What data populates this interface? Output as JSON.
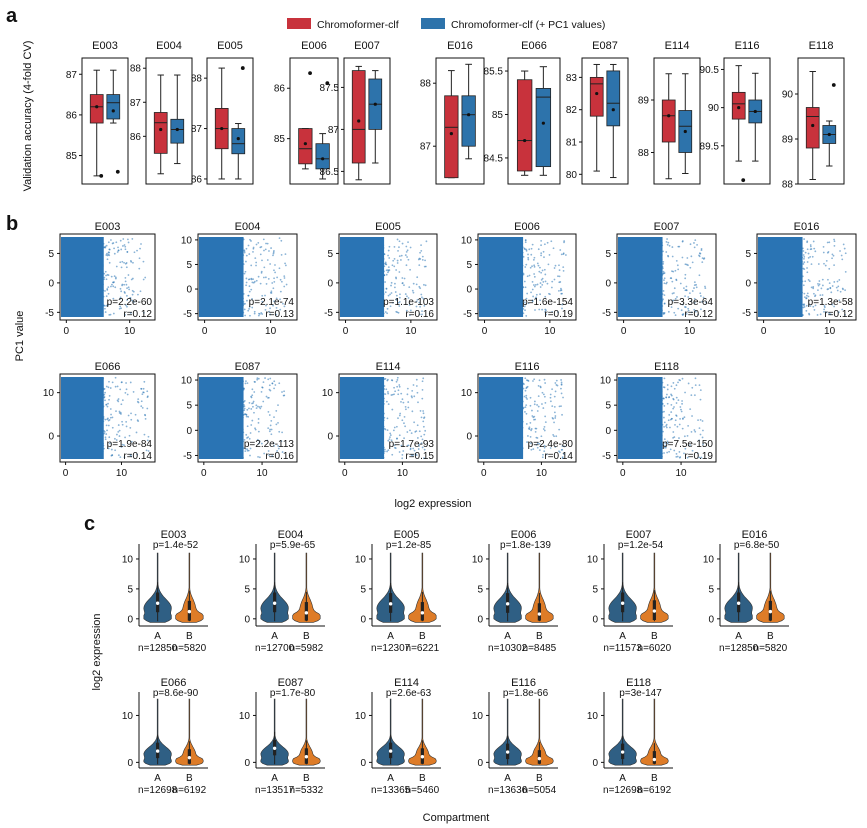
{
  "panels": {
    "a": "a",
    "b": "b",
    "c": "c"
  },
  "colors": {
    "red": "#c8323c",
    "blue": "#2d73ab",
    "violinBlue": "#2f5f84",
    "violinOrange": "#de7c28",
    "scatter": "#2a74b4"
  },
  "legend": {
    "series1": "Chromoformer-clf",
    "series2": "Chromoformer-clf (+ PC1 values)"
  },
  "chart_data": [
    {
      "type": "box",
      "panel": "a",
      "ylabel": "Validation accuracy (4-fold CV)",
      "series": [
        "Chromoformer-clf",
        "Chromoformer-clf (+ PC1 values)"
      ],
      "subplots": [
        {
          "title": "E003",
          "yticks": [
            85,
            86,
            87
          ],
          "ylim": [
            84.3,
            87.4
          ],
          "boxes": [
            {
              "whislo": 84.5,
              "q1": 85.8,
              "med": 86.2,
              "q3": 86.5,
              "whishi": 87.1,
              "fliers": [
                84.5
              ],
              "mean": 86.2
            },
            {
              "whislo": 85.8,
              "q1": 85.9,
              "med": 86.3,
              "q3": 86.5,
              "whishi": 87.1,
              "fliers": [
                84.6
              ],
              "mean": 86.1
            }
          ]
        },
        {
          "title": "E004",
          "yticks": [
            86,
            87,
            88
          ],
          "ylim": [
            84.6,
            88.3
          ],
          "boxes": [
            {
              "whislo": 84.9,
              "q1": 85.5,
              "med": 86.4,
              "q3": 86.7,
              "whishi": 87.8,
              "fliers": [],
              "mean": 86.2
            },
            {
              "whislo": 85.2,
              "q1": 85.8,
              "med": 86.2,
              "q3": 86.5,
              "whishi": 87.8,
              "fliers": [],
              "mean": 86.2
            }
          ]
        },
        {
          "title": "E005",
          "yticks": [
            86,
            87,
            88
          ],
          "ylim": [
            85.9,
            88.4
          ],
          "boxes": [
            {
              "whislo": 86.0,
              "q1": 86.6,
              "med": 87.0,
              "q3": 87.4,
              "whishi": 88.2,
              "fliers": [],
              "mean": 87.0
            },
            {
              "whislo": 86.0,
              "q1": 86.5,
              "med": 86.7,
              "q3": 87.0,
              "whishi": 87.1,
              "fliers": [
                88.2
              ],
              "mean": 86.8
            }
          ]
        },
        {
          "title": "E006",
          "yticks": [
            85,
            86
          ],
          "ylim": [
            84.1,
            86.6
          ],
          "boxes": [
            {
              "whislo": 84.4,
              "q1": 84.5,
              "med": 84.8,
              "q3": 85.2,
              "whishi": 85.2,
              "fliers": [
                86.3
              ],
              "mean": 84.9
            },
            {
              "whislo": 84.2,
              "q1": 84.4,
              "med": 84.6,
              "q3": 84.9,
              "whishi": 85.1,
              "fliers": [
                86.1
              ],
              "mean": 84.6
            }
          ]
        },
        {
          "title": "E007",
          "yticks": [
            86.5,
            87.0,
            87.5
          ],
          "ylim": [
            86.35,
            87.85
          ],
          "boxes": [
            {
              "whislo": 86.4,
              "q1": 86.6,
              "med": 87.0,
              "q3": 87.7,
              "whishi": 87.75,
              "fliers": [],
              "mean": 87.1
            },
            {
              "whislo": 86.6,
              "q1": 87.0,
              "med": 87.3,
              "q3": 87.6,
              "whishi": 87.7,
              "fliers": [],
              "mean": 87.3
            }
          ]
        },
        {
          "title": "E016",
          "yticks": [
            87,
            88
          ],
          "ylim": [
            86.4,
            88.4
          ],
          "boxes": [
            {
              "whislo": 86.5,
              "q1": 86.5,
              "med": 87.3,
              "q3": 87.8,
              "whishi": 88.2,
              "fliers": [],
              "mean": 87.2
            },
            {
              "whislo": 86.8,
              "q1": 87.0,
              "med": 87.5,
              "q3": 87.8,
              "whishi": 88.3,
              "fliers": [],
              "mean": 87.5
            }
          ]
        },
        {
          "title": "E066",
          "yticks": [
            84.5,
            85.0,
            85.5
          ],
          "ylim": [
            84.2,
            85.65
          ],
          "boxes": [
            {
              "whislo": 84.3,
              "q1": 84.35,
              "med": 84.7,
              "q3": 85.4,
              "whishi": 85.5,
              "fliers": [],
              "mean": 84.7
            },
            {
              "whislo": 84.3,
              "q1": 84.4,
              "med": 85.2,
              "q3": 85.3,
              "whishi": 85.55,
              "fliers": [],
              "mean": 84.9
            }
          ]
        },
        {
          "title": "E087",
          "yticks": [
            80,
            81,
            82,
            83
          ],
          "ylim": [
            79.7,
            83.6
          ],
          "boxes": [
            {
              "whislo": 80.1,
              "q1": 81.8,
              "med": 82.8,
              "q3": 83.0,
              "whishi": 83.4,
              "fliers": [],
              "mean": 82.5
            },
            {
              "whislo": 79.9,
              "q1": 81.5,
              "med": 82.2,
              "q3": 83.2,
              "whishi": 83.4,
              "fliers": [],
              "mean": 82.0
            }
          ]
        },
        {
          "title": "E114",
          "yticks": [
            88,
            89
          ],
          "ylim": [
            87.4,
            89.8
          ],
          "boxes": [
            {
              "whislo": 87.5,
              "q1": 88.2,
              "med": 88.7,
              "q3": 89.0,
              "whishi": 89.5,
              "fliers": [],
              "mean": 88.7
            },
            {
              "whislo": 87.6,
              "q1": 88.0,
              "med": 88.5,
              "q3": 88.8,
              "whishi": 89.5,
              "fliers": [],
              "mean": 88.4
            }
          ]
        },
        {
          "title": "E116",
          "yticks": [
            89.5,
            90.0,
            90.5
          ],
          "ylim": [
            89.0,
            90.65
          ],
          "boxes": [
            {
              "whislo": 89.3,
              "q1": 89.85,
              "med": 90.05,
              "q3": 90.2,
              "whishi": 90.55,
              "fliers": [
                89.05
              ],
              "mean": 90.0
            },
            {
              "whislo": 89.3,
              "q1": 89.8,
              "med": 89.95,
              "q3": 90.1,
              "whishi": 90.45,
              "fliers": [],
              "mean": 89.95
            }
          ]
        },
        {
          "title": "E118",
          "yticks": [
            88,
            89,
            90
          ],
          "ylim": [
            88.0,
            90.8
          ],
          "boxes": [
            {
              "whislo": 88.1,
              "q1": 88.8,
              "med": 89.5,
              "q3": 89.7,
              "whishi": 90.5,
              "fliers": [],
              "mean": 89.3
            },
            {
              "whislo": 88.4,
              "q1": 88.9,
              "med": 89.1,
              "q3": 89.3,
              "whishi": 89.4,
              "fliers": [
                90.2
              ],
              "mean": 89.1
            }
          ]
        }
      ]
    },
    {
      "type": "scatter",
      "panel": "b",
      "xlabel": "log2 expression",
      "ylabel": "PC1 value",
      "subplots": [
        {
          "title": "E003",
          "p": "p=2.2e-60",
          "r": "r=0.12",
          "xlim": [
            -1,
            14
          ],
          "ylim": [
            -6.3,
            8.3
          ],
          "xticks": [
            0,
            10
          ],
          "yticks": [
            -5,
            0,
            5
          ],
          "xmax": 12.5
        },
        {
          "title": "E004",
          "p": "p=2.1e-74",
          "r": "r=0.13",
          "xlim": [
            -1,
            14
          ],
          "ylim": [
            -6.3,
            11.2
          ],
          "xticks": [
            0,
            10
          ],
          "yticks": [
            -5,
            0,
            5,
            10
          ],
          "xmax": 12.5
        },
        {
          "title": "E005",
          "p": "p=1.1e-103",
          "r": "r=0.16",
          "xlim": [
            -1,
            14
          ],
          "ylim": [
            -6.3,
            8.3
          ],
          "xticks": [
            0,
            10
          ],
          "yticks": [
            -5,
            0,
            5
          ],
          "xmax": 12.5
        },
        {
          "title": "E006",
          "p": "p=1.6e-154",
          "r": "r=0.19",
          "xlim": [
            -1,
            14
          ],
          "ylim": [
            -6.3,
            11.2
          ],
          "xticks": [
            0,
            10
          ],
          "yticks": [
            -5,
            0,
            5,
            10
          ],
          "xmax": 12.5
        },
        {
          "title": "E007",
          "p": "p=3.3e-64",
          "r": "r=0.12",
          "xlim": [
            -1,
            14
          ],
          "ylim": [
            -6.3,
            8.3
          ],
          "xticks": [
            0,
            10
          ],
          "yticks": [
            -5,
            0,
            5
          ],
          "xmax": 12.5
        },
        {
          "title": "E016",
          "p": "p=1.3e-58",
          "r": "r=0.12",
          "xlim": [
            -1,
            14
          ],
          "ylim": [
            -6.3,
            8.3
          ],
          "xticks": [
            0,
            10
          ],
          "yticks": [
            -5,
            0,
            5
          ],
          "xmax": 12.5
        },
        {
          "title": "E066",
          "p": "p=1.9e-84",
          "r": "r=0.14",
          "xlim": [
            -1,
            16
          ],
          "ylim": [
            -6,
            14.3
          ],
          "xticks": [
            0,
            10
          ],
          "yticks": [
            0,
            10
          ],
          "xmax": 15
        },
        {
          "title": "E087",
          "p": "p=2.2e-113",
          "r": "r=0.16",
          "xlim": [
            -1,
            16
          ],
          "ylim": [
            -6.3,
            11.2
          ],
          "xticks": [
            0,
            10
          ],
          "yticks": [
            -5,
            0,
            5,
            10
          ],
          "xmax": 14
        },
        {
          "title": "E114",
          "p": "p=1.7e-93",
          "r": "r=0.15",
          "xlim": [
            -1,
            16
          ],
          "ylim": [
            -6,
            14.3
          ],
          "xticks": [
            0,
            10
          ],
          "yticks": [
            0,
            10
          ],
          "xmax": 14
        },
        {
          "title": "E116",
          "p": "p=2.4e-80",
          "r": "r=0.14",
          "xlim": [
            -1,
            16
          ],
          "ylim": [
            -6,
            14.3
          ],
          "xticks": [
            0,
            10
          ],
          "yticks": [
            0,
            10
          ],
          "xmax": 14
        },
        {
          "title": "E118",
          "p": "p=7.5e-150",
          "r": "r=0.19",
          "xlim": [
            -1,
            16
          ],
          "ylim": [
            -6.3,
            11.2
          ],
          "xticks": [
            0,
            10
          ],
          "yticks": [
            -5,
            0,
            5,
            10
          ],
          "xmax": 14
        }
      ]
    },
    {
      "type": "violin",
      "panel": "c",
      "xlabel": "Compartment",
      "ylabel": "log2 expression",
      "categories": [
        "A",
        "B"
      ],
      "subplots": [
        {
          "title": "E003",
          "p": "p=1.4e-52",
          "nA": "n=12850",
          "nB": "n=5820",
          "ymax": 12.5,
          "yticks": [
            0,
            5,
            10
          ],
          "medA": 2.6,
          "medB": 1.2
        },
        {
          "title": "E004",
          "p": "p=5.9e-65",
          "nA": "n=12700",
          "nB": "n=5982",
          "ymax": 12.5,
          "yticks": [
            0,
            5,
            10
          ],
          "medA": 2.6,
          "medB": 1.0
        },
        {
          "title": "E005",
          "p": "p=1.2e-85",
          "nA": "n=12307",
          "nB": "n=6221",
          "ymax": 12.5,
          "yticks": [
            0,
            5,
            10
          ],
          "medA": 2.5,
          "medB": 1.0
        },
        {
          "title": "E006",
          "p": "p=1.8e-139",
          "nA": "n=10302",
          "nB": "n=8485",
          "ymax": 12.5,
          "yticks": [
            0,
            5,
            10
          ],
          "medA": 2.5,
          "medB": 0.8
        },
        {
          "title": "E007",
          "p": "p=1.2e-54",
          "nA": "n=11573",
          "nB": "n=6020",
          "ymax": 12.5,
          "yticks": [
            0,
            5,
            10
          ],
          "medA": 2.6,
          "medB": 1.3
        },
        {
          "title": "E016",
          "p": "p=6.8e-50",
          "nA": "n=12850",
          "nB": "n=5820",
          "ymax": 12.5,
          "yticks": [
            0,
            5,
            10
          ],
          "medA": 2.6,
          "medB": 1.2
        },
        {
          "title": "E066",
          "p": "p=8.6e-90",
          "nA": "n=12698",
          "nB": "n=6192",
          "ymax": 15,
          "yticks": [
            0,
            10
          ],
          "medA": 2.4,
          "medB": 1.0
        },
        {
          "title": "E087",
          "p": "p=1.7e-80",
          "nA": "n=13517",
          "nB": "n=5332",
          "ymax": 15,
          "yticks": [
            0,
            10
          ],
          "medA": 3.0,
          "medB": 1.2
        },
        {
          "title": "E114",
          "p": "p=2.6e-63",
          "nA": "n=13365",
          "nB": "n=5460",
          "ymax": 15,
          "yticks": [
            0,
            10
          ],
          "medA": 2.4,
          "medB": 1.2
        },
        {
          "title": "E116",
          "p": "p=1.8e-66",
          "nA": "n=13636",
          "nB": "n=5054",
          "ymax": 15,
          "yticks": [
            0,
            10
          ],
          "medA": 2.2,
          "medB": 0.8
        },
        {
          "title": "E118",
          "p": "p=3e-147",
          "nA": "n=12698",
          "nB": "n=6192",
          "ymax": 15,
          "yticks": [
            0,
            10
          ],
          "medA": 2.2,
          "medB": 0.6
        }
      ]
    }
  ]
}
